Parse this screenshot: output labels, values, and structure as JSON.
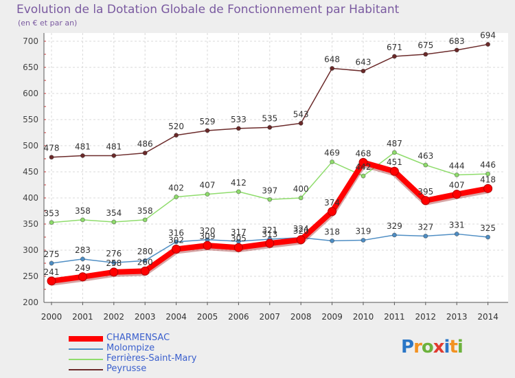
{
  "header": {
    "title": "Evolution de la Dotation Globale de Fonctionnement par Habitant",
    "subtitle": "(en € et par an)"
  },
  "logo": {
    "text": "Proxiti",
    "colors": [
      "#2a76c6",
      "#f29222",
      "#6cb23c",
      "#e03a2f",
      "#2a76c6",
      "#f29222",
      "#6cb23c"
    ]
  },
  "chart_data": {
    "type": "line",
    "title": "Evolution de la Dotation Globale de Fonctionnement par Habitant",
    "subtitle": "(en € et par an)",
    "xlabel": "",
    "ylabel": "",
    "ylim": [
      200,
      700
    ],
    "yticks": [
      200,
      250,
      300,
      350,
      400,
      450,
      500,
      550,
      600,
      650,
      700
    ],
    "grid": true,
    "legend_position": "bottom-left",
    "x": [
      "2000",
      "2001",
      "2002",
      "2003",
      "2004",
      "2005",
      "2006",
      "2007",
      "2008",
      "2009",
      "2010",
      "2011",
      "2012",
      "2013",
      "2014"
    ],
    "series": [
      {
        "name": "CHARMENSAC",
        "color": "#ff0000",
        "values": [
          241,
          249,
          258,
          260,
          302,
          309,
          305,
          313,
          320,
          374,
          468,
          451,
          395,
          407,
          418
        ],
        "labels": [
          "241",
          "249",
          "258",
          "260",
          "302",
          "309",
          "305",
          "313",
          "320",
          "374",
          "468",
          "451",
          "395",
          "407",
          "418"
        ]
      },
      {
        "name": "Molompize",
        "color": "#4f8ec4",
        "values": [
          275,
          283,
          276,
          280,
          316,
          320,
          317,
          321,
          324,
          318,
          319,
          329,
          327,
          331,
          325
        ],
        "labels": [
          "275",
          "283",
          "276",
          "280",
          "316",
          "320",
          "317",
          "321",
          "324",
          "318",
          "319",
          "329",
          "327",
          "331",
          "325"
        ]
      },
      {
        "name": "Ferrières-Saint-Mary",
        "color": "#8fdc6c",
        "values": [
          353,
          358,
          354,
          358,
          402,
          407,
          412,
          397,
          400,
          469,
          442,
          487,
          463,
          444,
          446
        ],
        "labels": [
          "353",
          "358",
          "354",
          "358",
          "402",
          "407",
          "412",
          "397",
          "400",
          "469",
          "442",
          "487",
          "463",
          "444",
          "446"
        ]
      },
      {
        "name": "Peyrusse",
        "color": "#6b2a2a",
        "values": [
          478,
          481,
          481,
          486,
          520,
          529,
          533,
          535,
          543,
          648,
          643,
          671,
          675,
          683,
          694
        ],
        "labels": [
          "478",
          "481",
          "481",
          "486",
          "520",
          "529",
          "533",
          "535",
          "543",
          "648",
          "643",
          "671",
          "675",
          "683",
          "694"
        ]
      }
    ]
  }
}
